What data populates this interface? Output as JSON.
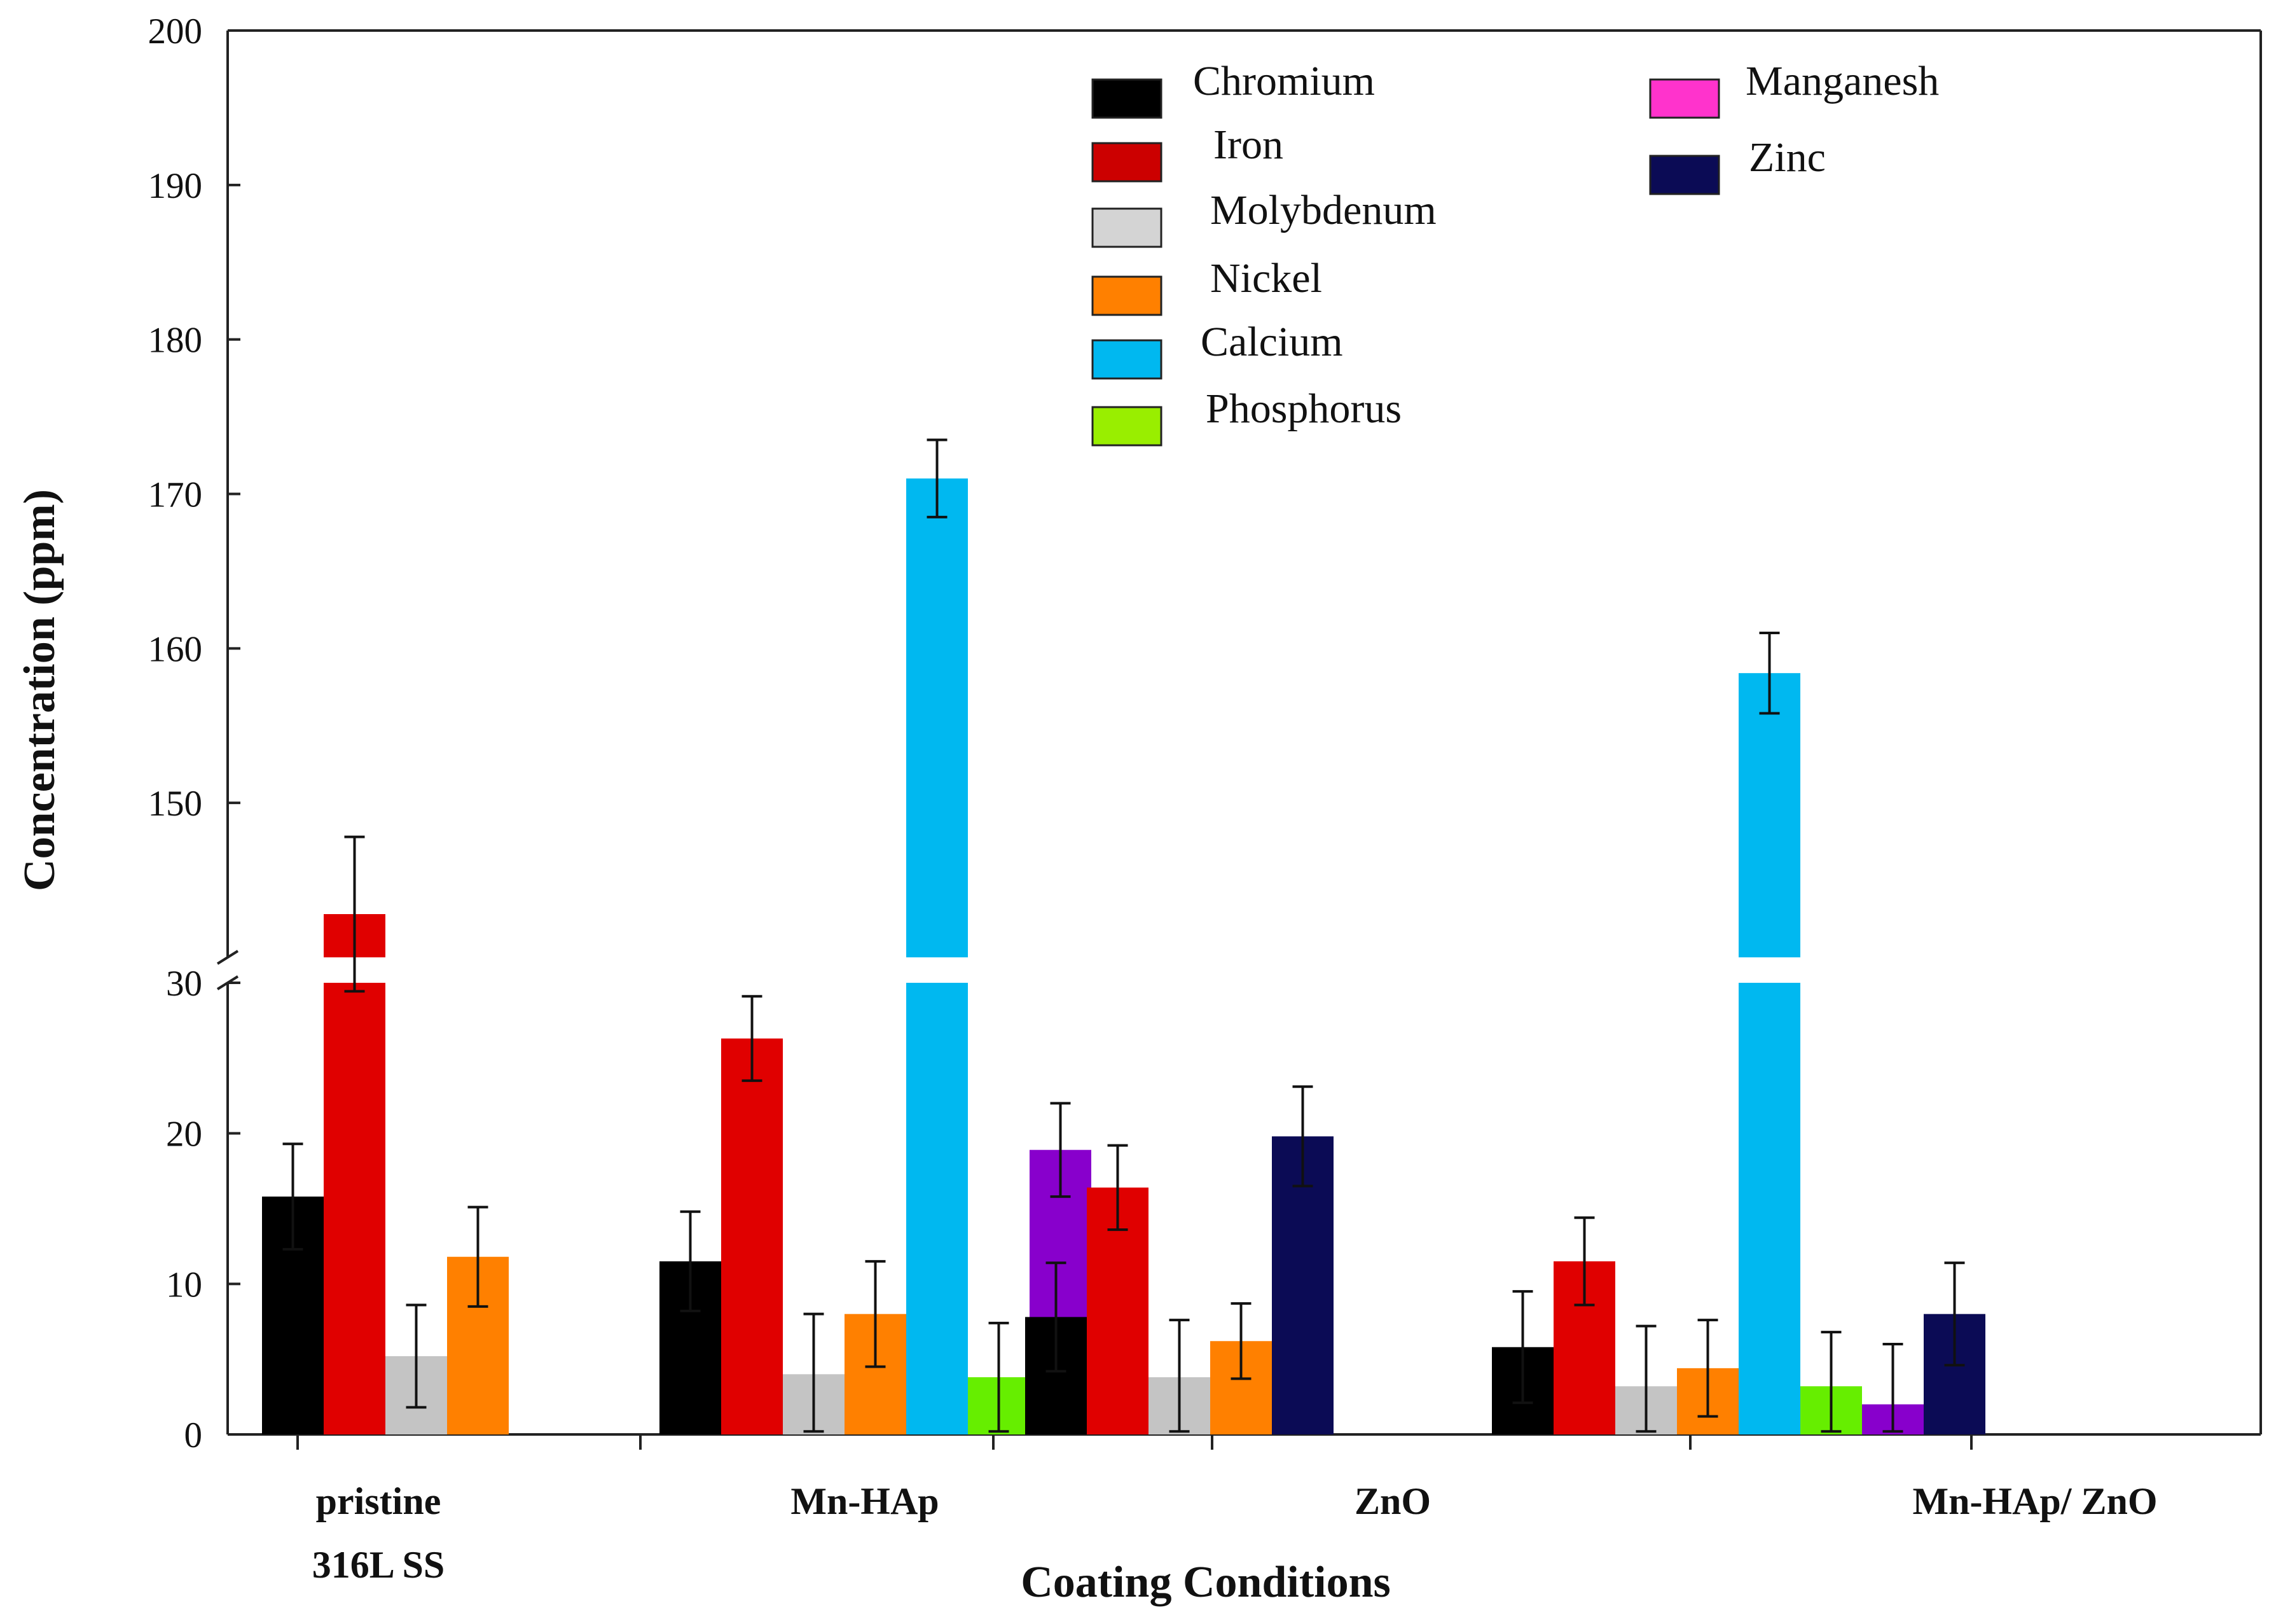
{
  "chart_data": {
    "type": "bar",
    "title": "",
    "xlabel": "Coating Conditions",
    "ylabel": "Concentration (ppm)",
    "axis_break": {
      "lower_range": [
        0,
        30
      ],
      "upper_range": [
        140,
        200
      ]
    },
    "ylim": [
      0,
      200
    ],
    "yticks_lower": [
      "0",
      "10",
      "20",
      "30"
    ],
    "yticks_upper": [
      "150",
      "160",
      "170",
      "180",
      "190",
      "200"
    ],
    "categories": [
      {
        "line1": "pristine",
        "line2": "316L SS"
      },
      {
        "line1": "Mn-HAp",
        "line2": ""
      },
      {
        "line1": "ZnO",
        "line2": ""
      },
      {
        "line1": "Mn-HAp/ ZnO",
        "line2": ""
      }
    ],
    "series": [
      {
        "name": "Chromium",
        "color": "#000000",
        "values": [
          15.8,
          11.5,
          7.8,
          5.8
        ],
        "errors": [
          3.5,
          3.3,
          3.6,
          3.7
        ]
      },
      {
        "name": "Iron",
        "color": "#e00000",
        "values": [
          142.8,
          26.3,
          16.4,
          11.5
        ],
        "errors": [
          5.0,
          2.8,
          2.8,
          2.9
        ]
      },
      {
        "name": "Molybdenum",
        "color": "#c4c4c4",
        "values": [
          5.2,
          4.0,
          3.8,
          3.2
        ],
        "errors": [
          3.4,
          4.0,
          3.8,
          4.0
        ]
      },
      {
        "name": "Nickel",
        "color": "#ff8000",
        "values": [
          11.8,
          8.0,
          6.2,
          4.4
        ],
        "errors": [
          3.3,
          3.5,
          2.5,
          3.2
        ]
      },
      {
        "name": "Calcium",
        "color": "#00b8f0",
        "values": [
          null,
          171.0,
          null,
          158.4
        ],
        "errors": [
          null,
          2.5,
          null,
          2.6
        ]
      },
      {
        "name": "Phosphorus",
        "color": "#66ee00",
        "values": [
          null,
          3.8,
          null,
          3.2
        ],
        "errors": [
          null,
          3.6,
          null,
          3.6
        ]
      },
      {
        "name": "Manganesh",
        "color": "#8800cc",
        "values": [
          null,
          18.9,
          null,
          2.0
        ],
        "errors": [
          null,
          3.1,
          null,
          4.0
        ]
      },
      {
        "name": "Zinc",
        "color": "#0b0b55",
        "values": [
          null,
          null,
          19.8,
          8.0
        ],
        "errors": [
          null,
          null,
          3.3,
          3.4
        ]
      }
    ],
    "legend": {
      "placement": "top-center",
      "entries": [
        {
          "label": "Chromium",
          "color": "#000000"
        },
        {
          "label": "Iron",
          "color": "#cc0000"
        },
        {
          "label": "Molybdenum",
          "color": "#d4d4d4"
        },
        {
          "label": "Nickel",
          "color": "#ff8000"
        },
        {
          "label": "Calcium",
          "color": "#00b8f0"
        },
        {
          "label": "Phosphorus",
          "color": "#99ee00"
        },
        {
          "label": "Manganesh",
          "color": "#ff33cc"
        },
        {
          "label": "Zinc",
          "color": "#0b0b55"
        }
      ]
    }
  }
}
